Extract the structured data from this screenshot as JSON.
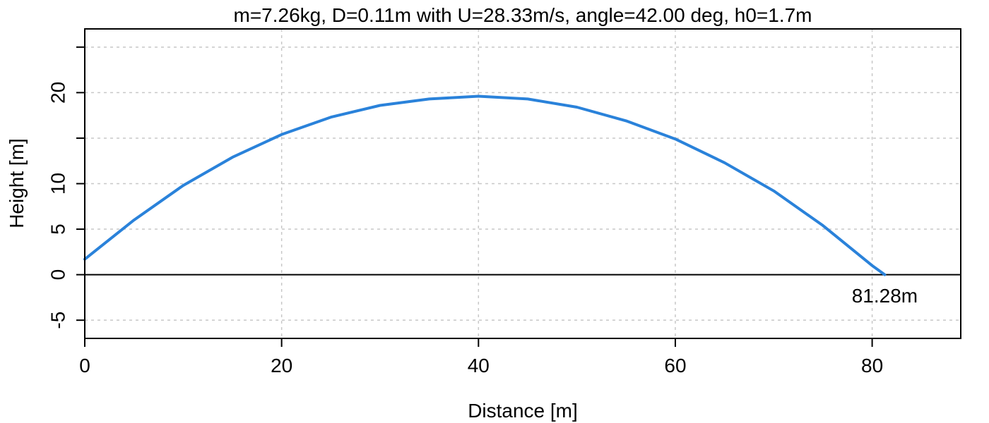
{
  "chart_data": {
    "type": "line",
    "title": "m=7.26kg, D=0.11m with U=28.33m/s, angle=42.00 deg, h0=1.7m",
    "xlabel": "Distance [m]",
    "ylabel": "Height [m]",
    "xlim": [
      0,
      89
    ],
    "ylim": [
      -7,
      27
    ],
    "x_ticks": [
      0,
      20,
      40,
      60,
      80
    ],
    "x_tick_labels": [
      "0",
      "20",
      "40",
      "60",
      "80"
    ],
    "y_ticks": [
      -5,
      0,
      5,
      10,
      15,
      20,
      25
    ],
    "y_tick_labels": [
      "-5",
      "0",
      "5",
      "10",
      "",
      "20",
      ""
    ],
    "grid": true,
    "reference_line_y": 0,
    "series": [
      {
        "color": "#2a82da",
        "x": [
          0,
          5,
          10,
          15,
          20,
          25,
          30,
          35,
          40,
          45,
          50,
          55,
          60,
          65,
          70,
          75,
          80,
          81.28
        ],
        "y": [
          1.7,
          6.0,
          9.8,
          12.9,
          15.4,
          17.3,
          18.6,
          19.3,
          19.6,
          19.3,
          18.4,
          16.9,
          14.9,
          12.3,
          9.2,
          5.4,
          1.0,
          0.0
        ]
      }
    ],
    "annotations": [
      {
        "text": "81.28m",
        "x": 81.28,
        "y": -2.3
      }
    ]
  }
}
